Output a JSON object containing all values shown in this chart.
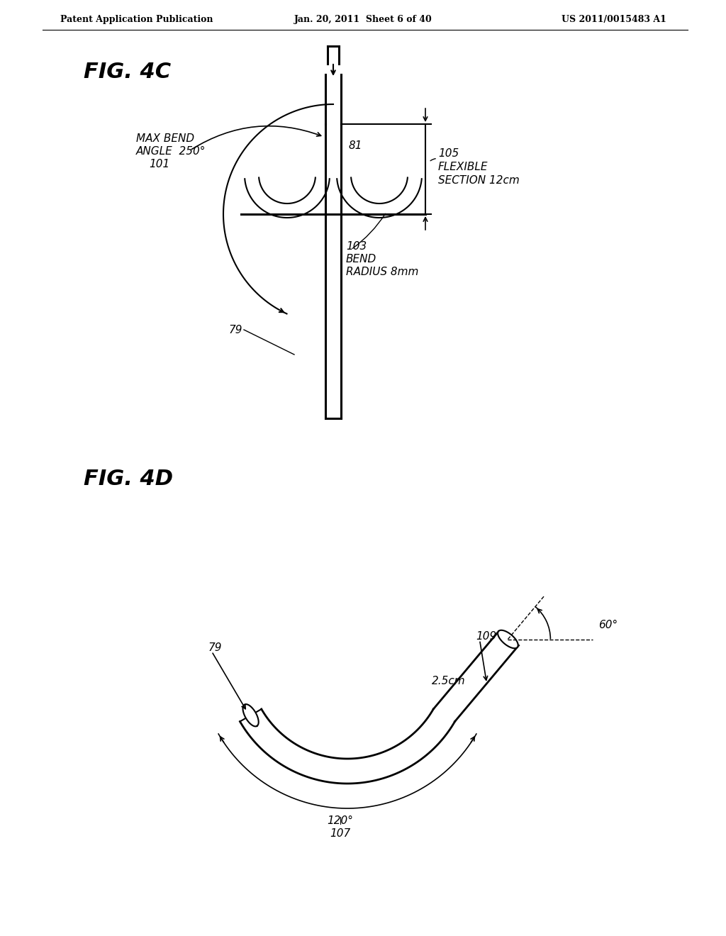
{
  "bg_color": "#ffffff",
  "header_left": "Patent Application Publication",
  "header_mid": "Jan. 20, 2011  Sheet 6 of 40",
  "header_right": "US 2011/0015483 A1",
  "fig4c_label": "FIG. 4C",
  "fig4d_label": "FIG. 4D",
  "line_color": "#000000"
}
